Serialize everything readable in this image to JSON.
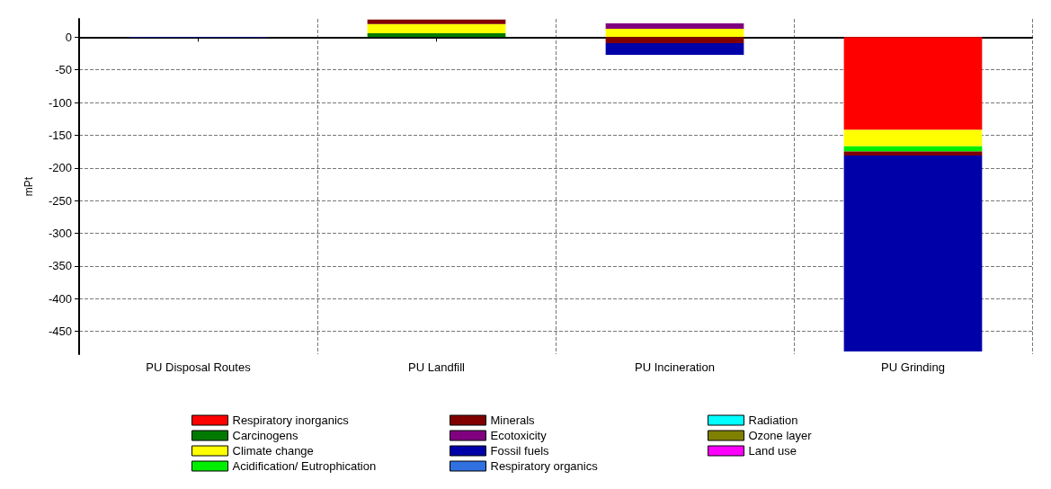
{
  "chart_data": {
    "type": "bar",
    "ylabel": "mPt",
    "categories": [
      "PU Disposal Routes",
      "PU Landfill",
      "PU Incineration",
      "PU Grinding"
    ],
    "stacked": true,
    "ylim": [
      -485,
      28
    ],
    "yticks": [
      0,
      -50,
      -100,
      -150,
      -200,
      -250,
      -300,
      -350,
      -400,
      -450
    ],
    "grid": true,
    "legend": "bottom",
    "series": [
      {
        "name": "Respiratory inorganics",
        "color": "#ff0000",
        "values": [
          null,
          null,
          null,
          -142
        ]
      },
      {
        "name": "Carcinogens",
        "color": "#007a00",
        "values": [
          null,
          6,
          null,
          null
        ]
      },
      {
        "name": "Climate change",
        "color": "#ffff00",
        "values": [
          null,
          14,
          13,
          -25
        ]
      },
      {
        "name": "Acidification/ Eutrophication",
        "color": "#00ee00",
        "values": [
          null,
          null,
          null,
          -8
        ]
      },
      {
        "name": "Minerals",
        "color": "#800000",
        "values": [
          null,
          7,
          -9,
          -6
        ]
      },
      {
        "name": "Ecotoxicity",
        "color": "#800080",
        "values": [
          null,
          null,
          8,
          null
        ]
      },
      {
        "name": "Fossil fuels",
        "color": "#0000a8",
        "values": [
          -1,
          null,
          -18,
          -300
        ]
      },
      {
        "name": "Respiratory organics",
        "color": "#3070e0",
        "values": [
          null,
          null,
          null,
          null
        ]
      },
      {
        "name": "Radiation",
        "color": "#00ffff",
        "values": [
          null,
          null,
          null,
          null
        ]
      },
      {
        "name": "Ozone layer",
        "color": "#808000",
        "values": [
          null,
          null,
          null,
          null
        ]
      },
      {
        "name": "Land use",
        "color": "#ff00ff",
        "values": [
          null,
          null,
          null,
          null
        ]
      }
    ]
  }
}
